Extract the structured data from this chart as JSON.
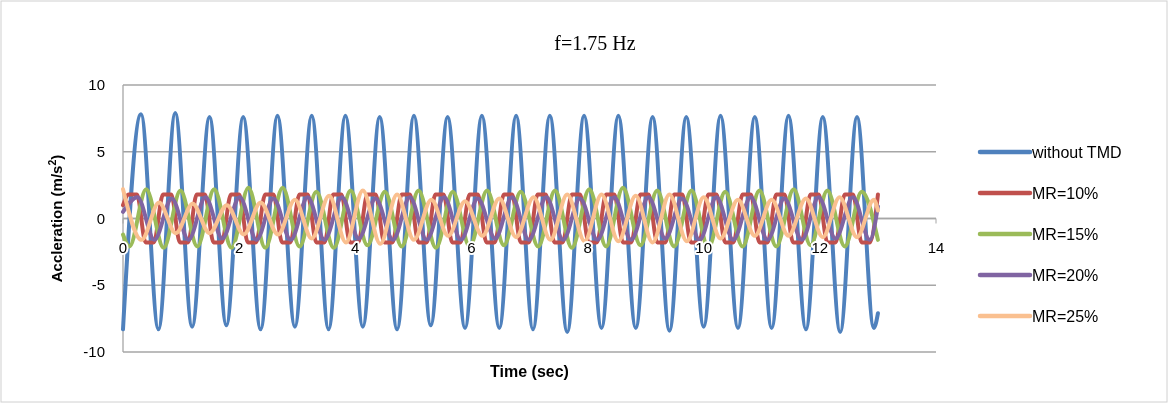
{
  "chart_data": {
    "type": "line",
    "title": "f=1.75 Hz",
    "xlabel": "Time (sec)",
    "ylabel": "Accleration (m/s$^{2}$)",
    "xlim": [
      0,
      14
    ],
    "xticks": [
      0,
      2,
      4,
      6,
      8,
      10,
      12,
      14
    ],
    "ylim": [
      -10,
      10
    ],
    "yticks": [
      -10,
      -5,
      0,
      5,
      10
    ],
    "grid": "y",
    "legend": "right",
    "line_style": "solid",
    "marker": "none",
    "series": [
      {
        "name": "without TMD",
        "color": "#4f81bd",
        "x": [
          0.0,
          0.31,
          0.61,
          0.9,
          1.19,
          1.49,
          1.78,
          2.07,
          2.37,
          2.66,
          2.96,
          3.25,
          3.54,
          3.83,
          4.13,
          4.42,
          4.72,
          5.01,
          5.3,
          5.59,
          5.89,
          6.18,
          6.48,
          6.77,
          7.06,
          7.35,
          7.65,
          7.94,
          8.24,
          8.53,
          8.83,
          9.12,
          9.41,
          9.7,
          10.0,
          10.29,
          10.59,
          10.88,
          11.17,
          11.46,
          11.76,
          12.05,
          12.35,
          12.64,
          12.93,
          13.0
        ],
        "values": [
          -8.3,
          7.8,
          -8.3,
          7.9,
          -8.1,
          7.6,
          -8.0,
          7.6,
          -8.3,
          7.7,
          -8.1,
          7.7,
          -8.3,
          7.7,
          -8.1,
          7.6,
          -8.3,
          7.7,
          -8.0,
          7.6,
          -8.2,
          7.7,
          -8.2,
          7.7,
          -8.3,
          7.7,
          -8.5,
          7.7,
          -8.2,
          7.7,
          -8.2,
          7.6,
          -8.4,
          7.6,
          -8.1,
          7.7,
          -8.2,
          7.6,
          -8.2,
          7.7,
          -8.3,
          7.6,
          -8.5,
          7.6,
          -8.2,
          -7.1
        ]
      },
      {
        "name": "MR=10%",
        "color": "#c0504d",
        "x": [
          0.0,
          0.1,
          0.24,
          0.39,
          0.53,
          0.69,
          0.83,
          0.98,
          1.12,
          1.27,
          1.41,
          1.56,
          1.7,
          1.86,
          2.0,
          2.15,
          2.29,
          2.45,
          2.59,
          2.74,
          2.88,
          3.04,
          3.18,
          3.33,
          3.47,
          3.62,
          3.76,
          3.91,
          4.05,
          4.21,
          4.35,
          4.5,
          4.64,
          4.8,
          4.94,
          5.09,
          5.23,
          5.38,
          5.52,
          5.67,
          5.81,
          5.97,
          6.11,
          6.26,
          6.4,
          6.56,
          6.7,
          6.85,
          6.99,
          7.14,
          7.28,
          7.43,
          7.57,
          7.73,
          7.87,
          8.02,
          8.16,
          8.32,
          8.46,
          8.61,
          8.75,
          8.91,
          9.05,
          9.2,
          9.34,
          9.49,
          9.63,
          9.78,
          9.92,
          10.08,
          10.22,
          10.37,
          10.51,
          10.67,
          10.81,
          10.96,
          11.1,
          11.25,
          11.39,
          11.54,
          11.68,
          11.84,
          11.98,
          12.13,
          12.27,
          12.43,
          12.57,
          12.72,
          12.86,
          13.0
        ],
        "values": [
          1.0,
          1.8,
          1.8,
          -1.8,
          -1.8,
          1.8,
          1.8,
          -1.8,
          -1.8,
          1.8,
          1.8,
          -1.8,
          -1.8,
          1.8,
          1.8,
          -1.8,
          -1.8,
          1.8,
          1.8,
          -1.8,
          -1.8,
          1.8,
          1.8,
          -1.8,
          -1.8,
          1.8,
          1.8,
          -1.8,
          -1.8,
          1.8,
          1.8,
          -1.8,
          -1.8,
          1.8,
          1.8,
          -1.8,
          -1.8,
          1.8,
          1.8,
          -1.8,
          -1.8,
          1.8,
          1.8,
          -1.8,
          -1.8,
          1.8,
          1.8,
          -1.8,
          -1.8,
          1.8,
          1.8,
          -1.8,
          -1.8,
          1.8,
          1.8,
          -1.8,
          -1.8,
          1.8,
          1.8,
          -1.8,
          -1.8,
          1.8,
          1.8,
          -1.8,
          -1.8,
          1.8,
          1.8,
          -1.8,
          -1.8,
          1.8,
          1.8,
          -1.8,
          -1.8,
          1.8,
          1.8,
          -1.8,
          -1.8,
          1.8,
          1.8,
          -1.8,
          -1.8,
          1.8,
          1.8,
          -1.8,
          -1.8,
          1.8,
          1.8,
          -1.8,
          -1.8,
          1.8
        ]
      },
      {
        "name": "MR=15%",
        "color": "#9bbb59",
        "x": [
          0.0,
          0.11,
          0.4,
          0.7,
          0.99,
          1.28,
          1.57,
          1.87,
          2.16,
          2.45,
          2.75,
          3.04,
          3.33,
          3.63,
          3.92,
          4.21,
          4.51,
          4.8,
          5.09,
          5.39,
          5.68,
          5.97,
          6.27,
          6.56,
          6.85,
          7.15,
          7.44,
          7.73,
          8.03,
          8.32,
          8.61,
          8.91,
          9.2,
          9.49,
          9.79,
          10.08,
          10.37,
          10.67,
          10.96,
          11.25,
          11.55,
          11.84,
          12.13,
          12.43,
          12.72,
          13.0
        ],
        "values": [
          -1.2,
          -2.1,
          2.2,
          -2.2,
          2.1,
          -2.1,
          2.2,
          -2.2,
          2.3,
          -2.2,
          2.3,
          -2.1,
          2.0,
          -2.2,
          2.1,
          -2.0,
          2.0,
          -2.1,
          2.1,
          -2.2,
          2.0,
          -2.1,
          2.1,
          -2.0,
          2.0,
          -2.1,
          2.1,
          -2.2,
          2.2,
          -2.1,
          2.3,
          -2.0,
          2.1,
          -2.1,
          2.1,
          -2.2,
          2.0,
          -2.1,
          2.1,
          -2.1,
          2.2,
          -2.0,
          2.1,
          -2.1,
          2.0,
          -1.6
        ]
      },
      {
        "name": "MR=20%",
        "color": "#8064a2",
        "x": [
          0.0,
          0.25,
          0.54,
          0.84,
          1.13,
          1.42,
          1.71,
          2.01,
          2.3,
          2.59,
          2.89,
          3.18,
          3.47,
          3.77,
          4.06,
          4.35,
          4.65,
          4.94,
          5.23,
          5.53,
          5.82,
          6.11,
          6.41,
          6.7,
          6.99,
          7.29,
          7.58,
          7.87,
          8.17,
          8.46,
          8.75,
          9.05,
          9.34,
          9.63,
          9.93,
          10.22,
          10.51,
          10.81,
          11.1,
          11.39,
          11.69,
          11.98,
          12.27,
          12.57,
          12.86,
          13.0
        ],
        "values": [
          0.5,
          1.6,
          -1.6,
          1.5,
          -1.6,
          1.6,
          -1.5,
          1.6,
          -1.6,
          1.5,
          -1.6,
          1.6,
          -1.6,
          1.6,
          -1.5,
          1.5,
          -1.6,
          1.6,
          -1.6,
          1.6,
          -1.6,
          1.5,
          -1.5,
          1.6,
          -1.6,
          1.6,
          -1.6,
          1.5,
          -1.6,
          1.6,
          -1.6,
          1.6,
          -1.5,
          1.5,
          -1.6,
          1.6,
          -1.6,
          1.6,
          -1.6,
          1.5,
          -1.6,
          1.6,
          -1.5,
          1.6,
          -1.6,
          0.9
        ]
      },
      {
        "name": "MR=25%",
        "color": "#fac090",
        "x": [
          0.0,
          0.32,
          0.62,
          0.91,
          1.2,
          1.49,
          1.79,
          2.08,
          2.37,
          2.67,
          2.96,
          3.25,
          3.55,
          3.84,
          4.13,
          4.43,
          4.72,
          5.01,
          5.31,
          5.6,
          5.89,
          6.19,
          6.48,
          6.77,
          7.07,
          7.36,
          7.65,
          7.95,
          8.24,
          8.53,
          8.83,
          9.12,
          9.41,
          9.71,
          10.0,
          10.29,
          10.59,
          10.88,
          11.17,
          11.46,
          11.76,
          12.05,
          12.34,
          12.64,
          12.93,
          13.0
        ],
        "values": [
          2.2,
          -1.6,
          1.2,
          -1.1,
          1.1,
          -1.1,
          1.0,
          -1.2,
          1.2,
          -1.2,
          1.4,
          -1.5,
          1.7,
          -1.8,
          2.1,
          -1.9,
          1.8,
          -1.6,
          1.4,
          -1.3,
          1.3,
          -1.3,
          1.5,
          -1.4,
          1.6,
          -1.6,
          1.8,
          -1.7,
          1.8,
          -1.7,
          1.7,
          -1.8,
          1.8,
          -1.7,
          1.6,
          -1.5,
          1.4,
          -1.3,
          1.4,
          -1.3,
          1.5,
          -1.4,
          1.6,
          -1.4,
          1.4,
          0.6
        ]
      }
    ]
  }
}
